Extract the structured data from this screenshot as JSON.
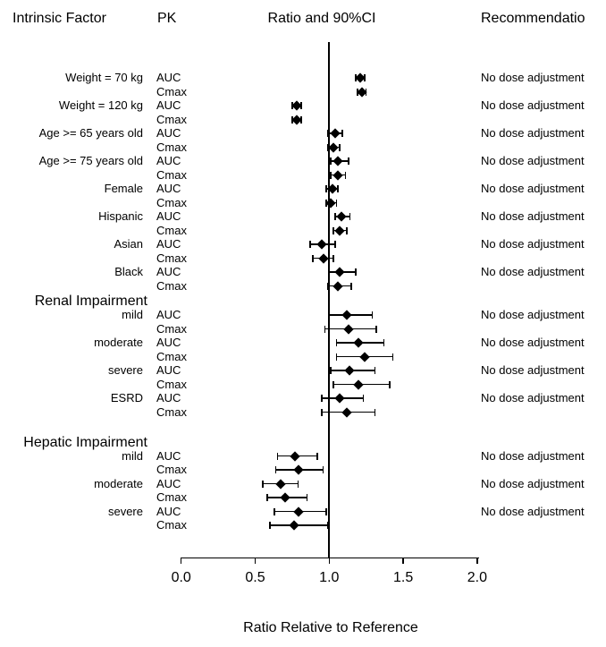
{
  "headers": {
    "factor": "Intrinsic Factor",
    "pk": "PK",
    "ratio": "Ratio and 90%CI",
    "recommendation": "Recommendatio"
  },
  "chart_data": {
    "type": "forest",
    "title": "Ratio and 90%CI",
    "xlabel": "Ratio Relative to Reference",
    "xlim": [
      0.0,
      2.0
    ],
    "reference_line": 1.0,
    "axis": {
      "tick_values": [
        0.0,
        0.5,
        1.0,
        1.5,
        2.0
      ],
      "tick_labels": [
        "0.0",
        "0.5",
        "1.0",
        "1.5",
        "2.0"
      ]
    },
    "rows": [
      {
        "factor": "Weight = 70 kg",
        "pk": "AUC",
        "estimate": 1.21,
        "ci_low": 1.18,
        "ci_high": 1.24,
        "recommendation": "No dose adjustment"
      },
      {
        "factor": "",
        "pk": "Cmax",
        "estimate": 1.22,
        "ci_low": 1.19,
        "ci_high": 1.25,
        "recommendation": ""
      },
      {
        "factor": "Weight = 120 kg",
        "pk": "AUC",
        "estimate": 0.78,
        "ci_low": 0.75,
        "ci_high": 0.81,
        "recommendation": "No dose adjustment"
      },
      {
        "factor": "",
        "pk": "Cmax",
        "estimate": 0.78,
        "ci_low": 0.75,
        "ci_high": 0.81,
        "recommendation": ""
      },
      {
        "factor": "Age >= 65 years old",
        "pk": "AUC",
        "estimate": 1.04,
        "ci_low": 0.99,
        "ci_high": 1.09,
        "recommendation": "No dose adjustment"
      },
      {
        "factor": "",
        "pk": "Cmax",
        "estimate": 1.03,
        "ci_low": 0.99,
        "ci_high": 1.07,
        "recommendation": ""
      },
      {
        "factor": "Age >= 75 years old",
        "pk": "AUC",
        "estimate": 1.06,
        "ci_low": 1.01,
        "ci_high": 1.13,
        "recommendation": "No dose adjustment"
      },
      {
        "factor": "",
        "pk": "Cmax",
        "estimate": 1.06,
        "ci_low": 1.01,
        "ci_high": 1.11,
        "recommendation": ""
      },
      {
        "factor": "Female",
        "pk": "AUC",
        "estimate": 1.02,
        "ci_low": 0.98,
        "ci_high": 1.06,
        "recommendation": "No dose adjustment"
      },
      {
        "factor": "",
        "pk": "Cmax",
        "estimate": 1.01,
        "ci_low": 0.98,
        "ci_high": 1.05,
        "recommendation": ""
      },
      {
        "factor": "Hispanic",
        "pk": "AUC",
        "estimate": 1.08,
        "ci_low": 1.04,
        "ci_high": 1.14,
        "recommendation": "No dose adjustment"
      },
      {
        "factor": "",
        "pk": "Cmax",
        "estimate": 1.07,
        "ci_low": 1.03,
        "ci_high": 1.12,
        "recommendation": ""
      },
      {
        "factor": "Asian",
        "pk": "AUC",
        "estimate": 0.95,
        "ci_low": 0.87,
        "ci_high": 1.04,
        "recommendation": "No dose adjustment"
      },
      {
        "factor": "",
        "pk": "Cmax",
        "estimate": 0.96,
        "ci_low": 0.89,
        "ci_high": 1.03,
        "recommendation": ""
      },
      {
        "factor": "Black",
        "pk": "AUC",
        "estimate": 1.07,
        "ci_low": 1.0,
        "ci_high": 1.18,
        "recommendation": "No dose adjustment"
      },
      {
        "factor": "",
        "pk": "Cmax",
        "estimate": 1.06,
        "ci_low": 0.99,
        "ci_high": 1.15,
        "recommendation": ""
      },
      {
        "section": "Renal Impairment"
      },
      {
        "factor": "mild",
        "pk": "AUC",
        "estimate": 1.12,
        "ci_low": 1.0,
        "ci_high": 1.29,
        "recommendation": "No dose adjustment"
      },
      {
        "factor": "",
        "pk": "Cmax",
        "estimate": 1.13,
        "ci_low": 0.97,
        "ci_high": 1.32,
        "recommendation": ""
      },
      {
        "factor": "moderate",
        "pk": "AUC",
        "estimate": 1.2,
        "ci_low": 1.05,
        "ci_high": 1.37,
        "recommendation": "No dose adjustment"
      },
      {
        "factor": "",
        "pk": "Cmax",
        "estimate": 1.24,
        "ci_low": 1.05,
        "ci_high": 1.43,
        "recommendation": ""
      },
      {
        "factor": "severe",
        "pk": "AUC",
        "estimate": 1.14,
        "ci_low": 1.01,
        "ci_high": 1.31,
        "recommendation": "No dose adjustment"
      },
      {
        "factor": "",
        "pk": "Cmax",
        "estimate": 1.2,
        "ci_low": 1.03,
        "ci_high": 1.41,
        "recommendation": ""
      },
      {
        "factor": "ESRD",
        "pk": "AUC",
        "estimate": 1.07,
        "ci_low": 0.95,
        "ci_high": 1.23,
        "recommendation": "No dose adjustment"
      },
      {
        "factor": "",
        "pk": "Cmax",
        "estimate": 1.12,
        "ci_low": 0.95,
        "ci_high": 1.31,
        "recommendation": ""
      },
      {
        "section": "Hepatic Impairment"
      },
      {
        "factor": "mild",
        "pk": "AUC",
        "estimate": 0.77,
        "ci_low": 0.65,
        "ci_high": 0.92,
        "recommendation": "No dose adjustment"
      },
      {
        "factor": "",
        "pk": "Cmax",
        "estimate": 0.79,
        "ci_low": 0.64,
        "ci_high": 0.96,
        "recommendation": ""
      },
      {
        "factor": "moderate",
        "pk": "AUC",
        "estimate": 0.67,
        "ci_low": 0.55,
        "ci_high": 0.79,
        "recommendation": "No dose adjustment"
      },
      {
        "factor": "",
        "pk": "Cmax",
        "estimate": 0.7,
        "ci_low": 0.58,
        "ci_high": 0.85,
        "recommendation": ""
      },
      {
        "factor": "severe",
        "pk": "AUC",
        "estimate": 0.79,
        "ci_low": 0.63,
        "ci_high": 0.98,
        "recommendation": "No dose adjustment"
      },
      {
        "factor": "",
        "pk": "Cmax",
        "estimate": 0.76,
        "ci_low": 0.6,
        "ci_high": 0.99,
        "recommendation": ""
      }
    ]
  }
}
